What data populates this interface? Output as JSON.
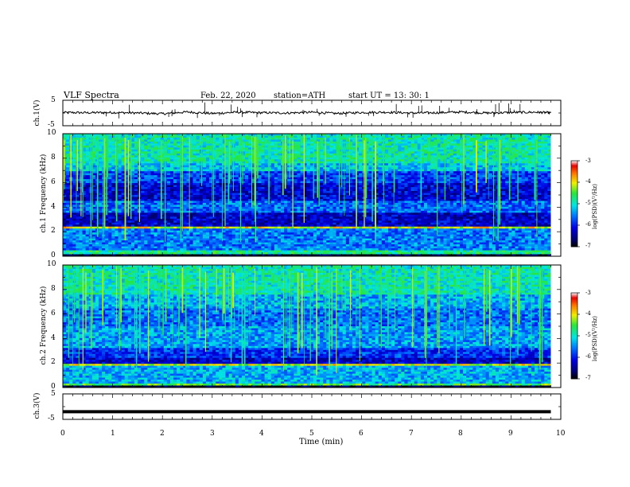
{
  "header": {
    "title": "VLF  Spectra",
    "date": "Feb. 22, 2020",
    "station": "station=ATH",
    "start": "start  UT  =    13: 30: 1"
  },
  "chart_data": [
    {
      "type": "line",
      "ylabel": "ch.1(V)",
      "xlim": [
        0,
        10
      ],
      "ylim": [
        -5,
        5
      ],
      "yticks": [
        "5",
        "-5"
      ],
      "x": [
        0,
        0.5,
        1,
        1.5,
        2,
        2.5,
        3,
        3.5,
        4,
        4.5,
        5,
        5.5,
        6,
        6.5,
        7,
        7.5,
        8,
        8.5,
        9,
        9.5,
        9.8
      ],
      "values": [
        0.2,
        0.1,
        0.2,
        0,
        -0.3,
        0.4,
        -0.2,
        0.3,
        0.1,
        0,
        0.3,
        -0.2,
        0.2,
        0.3,
        0,
        0.1,
        0.4,
        0,
        0.2,
        0.3,
        0.1
      ]
    },
    {
      "type": "heatmap",
      "ylabel": "ch.1  Frequency  (kHz)",
      "xlim": [
        0,
        10
      ],
      "ylim": [
        0,
        10
      ],
      "yticks": [
        "0",
        "2",
        "4",
        "6",
        "8",
        "10"
      ],
      "colorbar": {
        "label": "log(PSD)(V²/Hz)",
        "range": [
          -7,
          -3
        ],
        "ticks": [
          "-3",
          "-4",
          "-5",
          "-6",
          "-7"
        ]
      }
    },
    {
      "type": "heatmap",
      "ylabel": "ch.2  Frequency  (kHz)",
      "xlim": [
        0,
        10
      ],
      "ylim": [
        0,
        10
      ],
      "yticks": [
        "0",
        "2",
        "4",
        "6",
        "8",
        "10"
      ],
      "colorbar": {
        "label": "log(PSD)(V²/Hz)",
        "range": [
          -7,
          -3
        ],
        "ticks": [
          "-3",
          "-4",
          "-5",
          "-6",
          "-7"
        ]
      }
    },
    {
      "type": "line",
      "ylabel": "ch.3(V)",
      "xlim": [
        0,
        10
      ],
      "ylim": [
        -5,
        5
      ],
      "yticks": [
        "5",
        "-5"
      ],
      "x": [
        0,
        9.8
      ],
      "values": [
        -2,
        -2
      ],
      "xlabel": "Time  (min)",
      "xticks": [
        "0",
        "1",
        "2",
        "3",
        "4",
        "5",
        "6",
        "7",
        "8",
        "9",
        "10"
      ]
    }
  ]
}
